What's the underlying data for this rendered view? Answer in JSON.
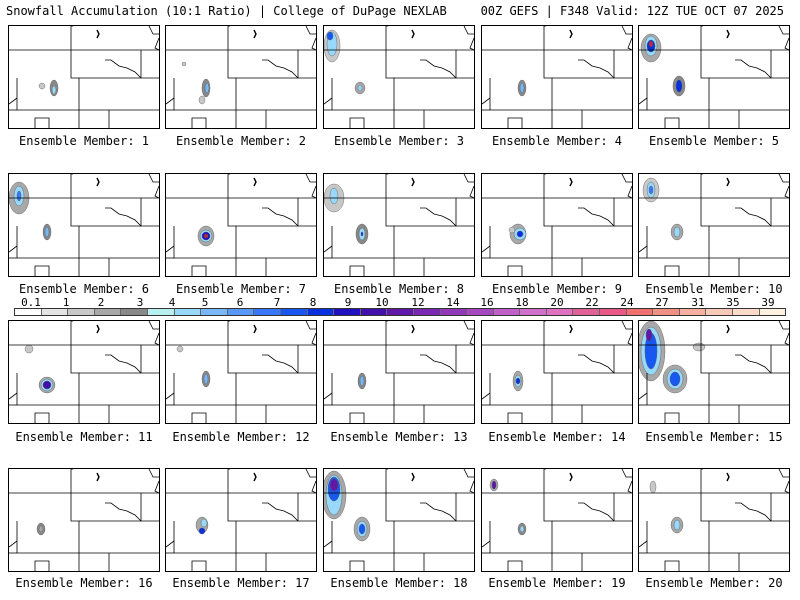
{
  "header": {
    "left": "Snowfall Accumulation (10:1 Ratio) | College of DuPage NEXLAB",
    "right": "00Z GEFS | F348 Valid: 12Z TUE OCT 07 2025"
  },
  "members": [
    "Ensemble Member: 1",
    "Ensemble Member: 2",
    "Ensemble Member: 3",
    "Ensemble Member: 4",
    "Ensemble Member: 5",
    "Ensemble Member: 6",
    "Ensemble Member: 7",
    "Ensemble Member: 8",
    "Ensemble Member: 9",
    "Ensemble Member: 10",
    "Ensemble Member: 11",
    "Ensemble Member: 12",
    "Ensemble Member: 13",
    "Ensemble Member: 14",
    "Ensemble Member: 15",
    "Ensemble Member: 16",
    "Ensemble Member: 17",
    "Ensemble Member: 18",
    "Ensemble Member: 19",
    "Ensemble Member: 20"
  ],
  "legend": {
    "ticks": [
      "0.1",
      "1",
      "2",
      "3",
      "4",
      "5",
      "6",
      "7",
      "8",
      "9",
      "10",
      "12",
      "14",
      "16",
      "18",
      "20",
      "22",
      "24",
      "27",
      "31",
      "35",
      "39"
    ],
    "colors": [
      "#ffffff",
      "#e4e4e4",
      "#c8c8c8",
      "#a8a8a8",
      "#888888",
      "#b8f0f0",
      "#98d8f8",
      "#78b8f8",
      "#5898f8",
      "#3878f8",
      "#1858f0",
      "#0830e0",
      "#2010c0",
      "#4010a8",
      "#6018a8",
      "#7828b0",
      "#9038b8",
      "#a848c0",
      "#c060c8",
      "#d070c8",
      "#e070c0",
      "#e06098",
      "#e85888",
      "#f07070",
      "#f09080",
      "#f8b0a0",
      "#f8c8b8",
      "#fcdcc8",
      "#fff0e0"
    ]
  }
}
